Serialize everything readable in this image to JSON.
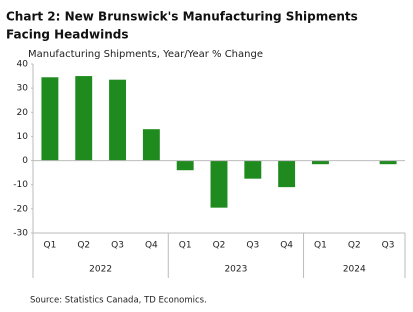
{
  "chart_data": {
    "type": "bar",
    "title_lines": [
      "Chart 2: New Brunswick's Manufacturing Shipments",
      "Facing Headwinds"
    ],
    "y_label": "Manufacturing Shipments, Year/Year % Change",
    "groups": [
      {
        "label": "2022",
        "categories": [
          "Q1",
          "Q2",
          "Q3",
          "Q4"
        ],
        "values": [
          34.5,
          35,
          33.5,
          13
        ]
      },
      {
        "label": "2023",
        "categories": [
          "Q1",
          "Q2",
          "Q3",
          "Q4"
        ],
        "values": [
          -4,
          -19.5,
          -7.5,
          -11
        ]
      },
      {
        "label": "2024",
        "categories": [
          "Q1",
          "Q2",
          "Q3"
        ],
        "values": [
          -1.5,
          null,
          -1.5
        ]
      }
    ],
    "color": "#1f8a1e",
    "ylim": [
      -30,
      40
    ],
    "yticks": [
      -30,
      -20,
      -10,
      0,
      10,
      20,
      30,
      40
    ],
    "source": "Source: Statistics Canada, TD Economics."
  }
}
